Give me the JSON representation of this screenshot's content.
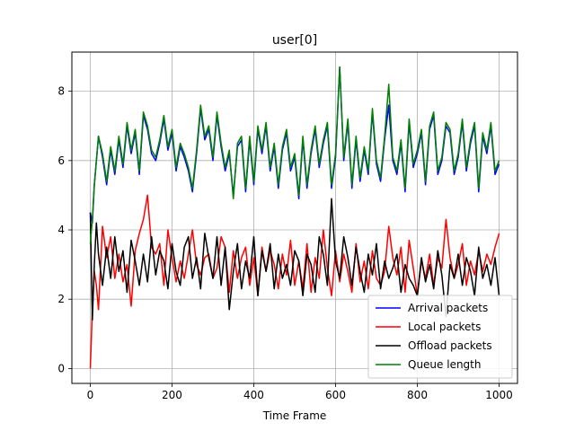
{
  "chart_data": {
    "type": "line",
    "title": "user[0]",
    "xlabel": "Time Frame",
    "ylabel": "",
    "xlim": [
      -45,
      1045
    ],
    "ylim": [
      -0.43,
      9.13
    ],
    "xticks": [
      0,
      200,
      400,
      600,
      800,
      1000
    ],
    "yticks": [
      0,
      2,
      4,
      6,
      8
    ],
    "grid": true,
    "legend_position": "lower-right",
    "series": [
      {
        "name": "Arrival packets",
        "color": "#0000ff",
        "x": [
          0,
          5,
          10,
          15,
          20,
          30,
          40,
          50,
          60,
          70,
          80,
          90,
          100,
          110,
          120,
          130,
          140,
          150,
          160,
          170,
          180,
          190,
          200,
          210,
          220,
          230,
          240,
          250,
          260,
          270,
          280,
          290,
          300,
          310,
          320,
          330,
          340,
          350,
          360,
          370,
          380,
          390,
          400,
          410,
          420,
          430,
          440,
          450,
          460,
          470,
          480,
          490,
          500,
          510,
          520,
          530,
          540,
          550,
          560,
          570,
          580,
          590,
          600,
          610,
          620,
          630,
          640,
          650,
          660,
          670,
          680,
          690,
          700,
          710,
          720,
          730,
          740,
          750,
          760,
          770,
          780,
          790,
          800,
          810,
          820,
          830,
          840,
          850,
          860,
          870,
          880,
          890,
          900,
          910,
          920,
          930,
          940,
          950,
          960,
          970,
          980,
          990,
          1000
        ],
        "y": [
          4.5,
          4.2,
          5.3,
          6.0,
          6.7,
          6.1,
          5.3,
          6.3,
          5.6,
          6.6,
          5.8,
          7.0,
          6.2,
          6.8,
          5.6,
          7.3,
          6.9,
          6.2,
          6.0,
          6.5,
          7.2,
          6.3,
          6.8,
          5.7,
          6.4,
          6.1,
          5.7,
          5.1,
          6.2,
          7.5,
          6.6,
          6.9,
          6.0,
          7.3,
          6.4,
          5.7,
          6.2,
          5.0,
          6.4,
          6.6,
          5.1,
          6.6,
          5.3,
          6.9,
          6.2,
          7.0,
          5.7,
          6.4,
          5.2,
          6.3,
          6.8,
          5.7,
          6.1,
          4.9,
          6.6,
          5.2,
          6.2,
          6.9,
          5.8,
          6.5,
          7.0,
          5.2,
          6.1,
          8.7,
          6.0,
          7.1,
          5.2,
          6.6,
          5.4,
          6.3,
          5.6,
          7.4,
          5.9,
          5.4,
          6.6,
          7.6,
          6.0,
          5.6,
          6.5,
          5.1,
          7.1,
          5.8,
          6.2,
          6.8,
          5.3,
          6.9,
          7.3,
          5.6,
          6.0,
          7.0,
          6.8,
          5.6,
          6.1,
          7.1,
          5.7,
          6.5,
          7.0,
          5.1,
          6.7,
          6.2,
          7.0,
          5.6,
          5.9
        ]
      },
      {
        "name": "Local packets",
        "color": "#ff0000",
        "x": [
          0,
          5,
          10,
          15,
          20,
          30,
          40,
          50,
          60,
          70,
          80,
          90,
          100,
          110,
          120,
          130,
          140,
          150,
          160,
          170,
          180,
          190,
          200,
          210,
          220,
          230,
          240,
          250,
          260,
          270,
          280,
          290,
          300,
          310,
          320,
          330,
          340,
          350,
          360,
          370,
          380,
          390,
          400,
          410,
          420,
          430,
          440,
          450,
          460,
          470,
          480,
          490,
          500,
          510,
          520,
          530,
          540,
          550,
          560,
          570,
          580,
          590,
          600,
          610,
          620,
          630,
          640,
          650,
          660,
          670,
          680,
          690,
          700,
          710,
          720,
          730,
          740,
          750,
          760,
          770,
          780,
          790,
          800,
          810,
          820,
          830,
          840,
          850,
          860,
          870,
          880,
          890,
          900,
          910,
          920,
          930,
          940,
          950,
          960,
          970,
          980,
          990,
          1000
        ],
        "y": [
          0.0,
          1.7,
          2.8,
          2.4,
          1.7,
          4.1,
          3.2,
          3.8,
          2.6,
          3.3,
          2.5,
          3.0,
          1.8,
          3.4,
          3.9,
          4.3,
          5.0,
          3.5,
          3.3,
          3.6,
          2.4,
          4.0,
          3.2,
          2.5,
          3.1,
          2.6,
          3.3,
          4.0,
          3.0,
          2.7,
          3.2,
          3.3,
          2.6,
          2.9,
          3.8,
          3.5,
          2.2,
          3.4,
          2.6,
          3.2,
          3.5,
          2.4,
          3.2,
          2.1,
          3.5,
          2.8,
          3.4,
          3.0,
          2.3,
          3.3,
          2.7,
          3.7,
          2.4,
          3.1,
          2.3,
          3.6,
          2.2,
          3.2,
          2.6,
          4.0,
          2.9,
          2.1,
          3.4,
          2.5,
          3.3,
          2.8,
          2.2,
          3.6,
          2.5,
          3.1,
          2.3,
          3.4,
          2.6,
          2.4,
          2.8,
          4.1,
          3.2,
          2.7,
          3.5,
          2.2,
          3.7,
          2.9,
          2.1,
          3.1,
          2.6,
          3.3,
          2.4,
          3.2,
          2.9,
          4.3,
          3.2,
          2.6,
          3.0,
          3.6,
          2.4,
          3.1,
          2.7,
          3.4,
          2.8,
          3.3,
          3.0,
          3.5,
          3.9
        ]
      },
      {
        "name": "Offload packets",
        "color": "#000000",
        "x": [
          0,
          5,
          10,
          15,
          20,
          30,
          40,
          50,
          60,
          70,
          80,
          90,
          100,
          110,
          120,
          130,
          140,
          150,
          160,
          170,
          180,
          190,
          200,
          210,
          220,
          230,
          240,
          250,
          260,
          270,
          280,
          290,
          300,
          310,
          320,
          330,
          340,
          350,
          360,
          370,
          380,
          390,
          400,
          410,
          420,
          430,
          440,
          450,
          460,
          470,
          480,
          490,
          500,
          510,
          520,
          530,
          540,
          550,
          560,
          570,
          580,
          590,
          600,
          610,
          620,
          630,
          640,
          650,
          660,
          670,
          680,
          690,
          700,
          710,
          720,
          730,
          740,
          750,
          760,
          770,
          780,
          790,
          800,
          810,
          820,
          830,
          840,
          850,
          860,
          870,
          880,
          890,
          900,
          910,
          920,
          930,
          940,
          950,
          960,
          970,
          980,
          990,
          1000
        ],
        "y": [
          4.5,
          1.4,
          3.0,
          4.2,
          3.3,
          2.4,
          3.5,
          2.6,
          3.8,
          2.8,
          3.4,
          2.2,
          3.7,
          3.1,
          2.4,
          3.3,
          2.5,
          3.8,
          2.7,
          3.4,
          3.1,
          2.3,
          3.6,
          2.8,
          2.4,
          3.5,
          3.8,
          2.6,
          3.2,
          2.3,
          3.9,
          3.2,
          2.6,
          3.8,
          2.4,
          3.5,
          1.7,
          2.8,
          3.6,
          2.3,
          3.1,
          2.6,
          3.8,
          2.1,
          3.4,
          2.8,
          3.6,
          2.3,
          3.3,
          2.6,
          3.0,
          2.4,
          3.4,
          3.1,
          2.1,
          3.3,
          3.0,
          2.2,
          3.8,
          3.3,
          2.4,
          4.9,
          3.1,
          2.6,
          3.8,
          3.2,
          2.4,
          3.5,
          2.8,
          2.2,
          3.3,
          2.7,
          3.6,
          2.3,
          3.1,
          2.6,
          2.9,
          3.3,
          2.2,
          3.0,
          2.6,
          2.4,
          2.1,
          3.2,
          2.5,
          3.0,
          2.3,
          3.4,
          2.7,
          1.5,
          3.0,
          2.6,
          3.3,
          2.4,
          3.2,
          2.8,
          2.1,
          3.5,
          2.6,
          3.0,
          2.4,
          3.2,
          2.1
        ]
      },
      {
        "name": "Queue length",
        "color": "#008000",
        "x": [
          0,
          5,
          10,
          15,
          20,
          30,
          40,
          50,
          60,
          70,
          80,
          90,
          100,
          110,
          120,
          130,
          140,
          150,
          160,
          170,
          180,
          190,
          200,
          210,
          220,
          230,
          240,
          250,
          260,
          270,
          280,
          290,
          300,
          310,
          320,
          330,
          340,
          350,
          360,
          370,
          380,
          390,
          400,
          410,
          420,
          430,
          440,
          450,
          460,
          470,
          480,
          490,
          500,
          510,
          520,
          530,
          540,
          550,
          560,
          570,
          580,
          590,
          600,
          610,
          620,
          630,
          640,
          650,
          660,
          670,
          680,
          690,
          700,
          710,
          720,
          730,
          740,
          750,
          760,
          770,
          780,
          790,
          800,
          810,
          820,
          830,
          840,
          850,
          860,
          870,
          880,
          890,
          900,
          910,
          920,
          930,
          940,
          950,
          960,
          970,
          980,
          990,
          1000
        ],
        "y": [
          3.6,
          4.3,
          5.3,
          6.0,
          6.7,
          6.2,
          5.4,
          6.4,
          5.7,
          6.7,
          5.9,
          7.1,
          6.3,
          6.9,
          5.7,
          7.4,
          7.0,
          6.3,
          6.1,
          6.6,
          7.3,
          6.4,
          6.9,
          5.8,
          6.5,
          6.2,
          5.8,
          5.2,
          6.3,
          7.6,
          6.7,
          7.0,
          6.1,
          7.4,
          6.5,
          5.8,
          6.3,
          4.9,
          6.5,
          6.7,
          5.2,
          6.7,
          5.4,
          7.0,
          6.3,
          7.1,
          5.8,
          6.5,
          5.3,
          6.4,
          6.9,
          5.8,
          6.2,
          5.0,
          6.7,
          5.3,
          6.3,
          7.0,
          5.9,
          6.6,
          7.1,
          5.3,
          6.2,
          8.7,
          6.1,
          7.2,
          5.3,
          6.7,
          5.5,
          6.4,
          5.7,
          7.5,
          6.0,
          5.5,
          6.7,
          8.2,
          6.1,
          5.7,
          6.6,
          5.2,
          7.2,
          5.9,
          6.3,
          6.9,
          5.4,
          7.0,
          7.4,
          5.7,
          6.1,
          7.1,
          6.9,
          5.7,
          6.2,
          7.2,
          5.8,
          6.6,
          7.1,
          5.2,
          6.8,
          6.3,
          7.1,
          5.7,
          6.0
        ]
      }
    ]
  }
}
